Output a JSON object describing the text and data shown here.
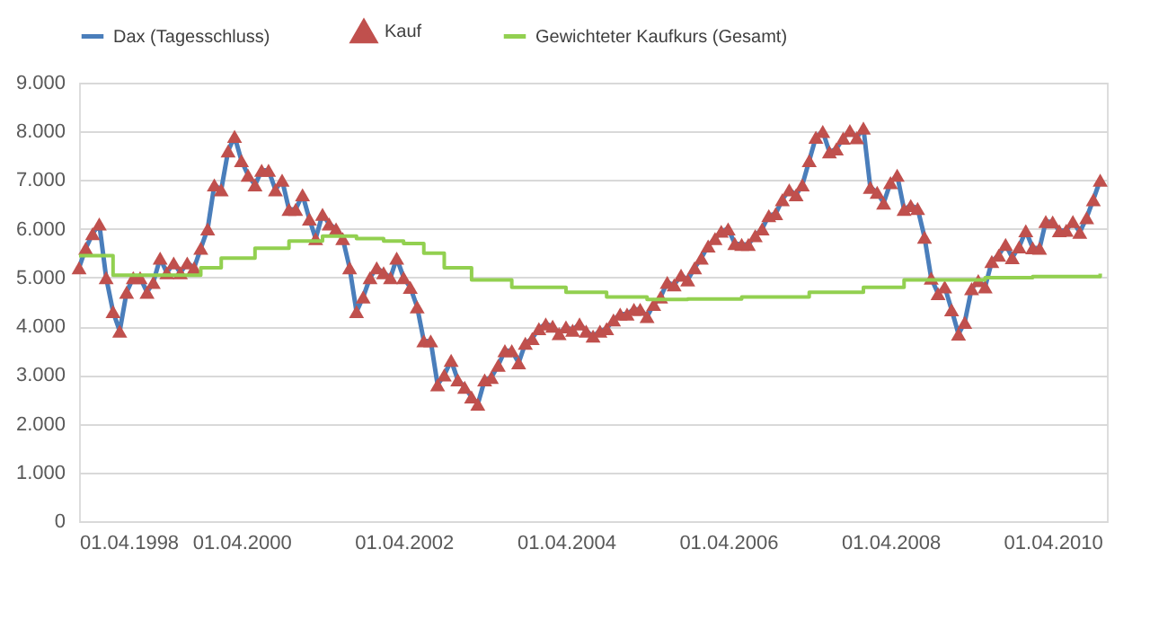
{
  "chart_data": {
    "type": "line",
    "legend": "top",
    "grid": "y",
    "xlim": [
      "1998-04-01",
      "2010-12-01"
    ],
    "xticks": [
      {
        "value": "1998-04-01",
        "label": "01.04.1998"
      },
      {
        "value": "2000-04-01",
        "label": "01.04.2000"
      },
      {
        "value": "2002-04-01",
        "label": "01.04.2002"
      },
      {
        "value": "2004-04-01",
        "label": "01.04.2004"
      },
      {
        "value": "2006-04-01",
        "label": "01.04.2006"
      },
      {
        "value": "2008-04-01",
        "label": "01.04.2008"
      },
      {
        "value": "2010-04-01",
        "label": "01.04.2010"
      }
    ],
    "ylim": [
      0,
      9000
    ],
    "yticks": [
      0,
      {
        "value": 1000,
        "label": "1.000"
      },
      {
        "value": 2000,
        "label": "2.000"
      },
      {
        "value": 3000,
        "label": "3.000"
      },
      {
        "value": 4000,
        "label": "4.000"
      },
      {
        "value": 5000,
        "label": "5.000"
      },
      {
        "value": 6000,
        "label": "6.000"
      },
      {
        "value": 7000,
        "label": "7.000"
      },
      {
        "value": 8000,
        "label": "8.000"
      },
      {
        "value": 9000,
        "label": "9.000"
      }
    ],
    "x": [
      "1998-04",
      "1998-05",
      "1998-06",
      "1998-07",
      "1998-08",
      "1998-09",
      "1998-10",
      "1998-11",
      "1998-12",
      "1999-01",
      "1999-02",
      "1999-03",
      "1999-04",
      "1999-05",
      "1999-06",
      "1999-07",
      "1999-08",
      "1999-09",
      "1999-10",
      "1999-11",
      "1999-12",
      "2000-01",
      "2000-02",
      "2000-03",
      "2000-04",
      "2000-05",
      "2000-06",
      "2000-07",
      "2000-08",
      "2000-09",
      "2000-10",
      "2000-11",
      "2000-12",
      "2001-01",
      "2001-02",
      "2001-03",
      "2001-04",
      "2001-05",
      "2001-06",
      "2001-07",
      "2001-08",
      "2001-09",
      "2001-10",
      "2001-11",
      "2001-12",
      "2002-01",
      "2002-02",
      "2002-03",
      "2002-04",
      "2002-05",
      "2002-06",
      "2002-07",
      "2002-08",
      "2002-09",
      "2002-10",
      "2002-11",
      "2002-12",
      "2003-01",
      "2003-02",
      "2003-03",
      "2003-04",
      "2003-05",
      "2003-06",
      "2003-07",
      "2003-08",
      "2003-09",
      "2003-10",
      "2003-11",
      "2003-12",
      "2004-01",
      "2004-02",
      "2004-03",
      "2004-04",
      "2004-05",
      "2004-06",
      "2004-07",
      "2004-08",
      "2004-09",
      "2004-10",
      "2004-11",
      "2004-12",
      "2005-01",
      "2005-02",
      "2005-03",
      "2005-04",
      "2005-05",
      "2005-06",
      "2005-07",
      "2005-08",
      "2005-09",
      "2005-10",
      "2005-11",
      "2005-12",
      "2006-01",
      "2006-02",
      "2006-03",
      "2006-04",
      "2006-05",
      "2006-06",
      "2006-07",
      "2006-08",
      "2006-09",
      "2006-10",
      "2006-11",
      "2006-12",
      "2007-01",
      "2007-02",
      "2007-03",
      "2007-04",
      "2007-05",
      "2007-06",
      "2007-07",
      "2007-08",
      "2007-09",
      "2007-10",
      "2007-11",
      "2007-12",
      "2008-01",
      "2008-02",
      "2008-03",
      "2008-04",
      "2008-05",
      "2008-06",
      "2008-07",
      "2008-08",
      "2008-09",
      "2008-10",
      "2008-11",
      "2008-12",
      "2009-01",
      "2009-02",
      "2009-03",
      "2009-04",
      "2009-05",
      "2009-06",
      "2009-07",
      "2009-08",
      "2009-09",
      "2009-10",
      "2009-11",
      "2009-12",
      "2010-01",
      "2010-02",
      "2010-03",
      "2010-04",
      "2010-05",
      "2010-06",
      "2010-07",
      "2010-08",
      "2010-09",
      "2010-10",
      "2010-11"
    ],
    "series": [
      {
        "name": "Dax (Tagesschluss)",
        "color": "#4a7ebb",
        "values": [
          5200,
          5600,
          5900,
          6100,
          5000,
          4300,
          3900,
          4700,
          5000,
          5000,
          4700,
          4900,
          5400,
          5100,
          5300,
          5100,
          5300,
          5200,
          5600,
          6000,
          6900,
          6800,
          7600,
          7900,
          7400,
          7100,
          6900,
          7200,
          7200,
          6800,
          7000,
          6400,
          6400,
          6700,
          6200,
          5800,
          6300,
          6100,
          6000,
          5800,
          5200,
          4300,
          4600,
          5000,
          5200,
          5100,
          5000,
          5400,
          5000,
          4800,
          4400,
          3700,
          3700,
          2800,
          3000,
          3300,
          2900,
          2750,
          2550,
          2400,
          2900,
          2950,
          3200,
          3500,
          3500,
          3250,
          3650,
          3750,
          3950,
          4050,
          4000,
          3850,
          3990,
          3920,
          4050,
          3900,
          3800,
          3900,
          3950,
          4130,
          4250,
          4250,
          4350,
          4350,
          4200,
          4450,
          4600,
          4900,
          4850,
          5050,
          4950,
          5200,
          5400,
          5650,
          5800,
          5950,
          6000,
          5700,
          5680,
          5680,
          5860,
          6000,
          6270,
          6310,
          6600,
          6800,
          6700,
          6900,
          7400,
          7880,
          8000,
          7580,
          7640,
          7860,
          8020,
          7870,
          8070,
          6850,
          6750,
          6530,
          6950,
          7100,
          6400,
          6480,
          6420,
          5830,
          4990,
          4670,
          4810,
          4340,
          3840,
          4080,
          4770,
          4940,
          4810,
          5330,
          5460,
          5680,
          5410,
          5630,
          5960,
          5610,
          5600,
          6150,
          6140,
          5960,
          5970,
          6150,
          5930,
          6230,
          6600,
          7000
        ]
      },
      {
        "name": "Kauf",
        "color": "#c0504d",
        "type": "scatter",
        "marker": "triangle",
        "values": [
          5200,
          5600,
          5900,
          6100,
          5000,
          4300,
          3900,
          4700,
          5000,
          5000,
          4700,
          4900,
          5400,
          5100,
          5300,
          5100,
          5300,
          5200,
          5600,
          6000,
          6900,
          6800,
          7600,
          7900,
          7400,
          7100,
          6900,
          7200,
          7200,
          6800,
          7000,
          6400,
          6400,
          6700,
          6200,
          5800,
          6300,
          6100,
          6000,
          5800,
          5200,
          4300,
          4600,
          5000,
          5200,
          5100,
          5000,
          5400,
          5000,
          4800,
          4400,
          3700,
          3700,
          2800,
          3000,
          3300,
          2900,
          2750,
          2550,
          2400,
          2900,
          2950,
          3200,
          3500,
          3500,
          3250,
          3650,
          3750,
          3950,
          4050,
          4000,
          3850,
          3990,
          3920,
          4050,
          3900,
          3800,
          3900,
          3950,
          4130,
          4250,
          4250,
          4350,
          4350,
          4200,
          4450,
          4600,
          4900,
          4850,
          5050,
          4950,
          5200,
          5400,
          5650,
          5800,
          5950,
          6000,
          5700,
          5680,
          5680,
          5860,
          6000,
          6270,
          6310,
          6600,
          6800,
          6700,
          6900,
          7400,
          7880,
          8000,
          7580,
          7640,
          7860,
          8020,
          7870,
          8070,
          6850,
          6750,
          6530,
          6950,
          7100,
          6400,
          6480,
          6420,
          5830,
          4990,
          4670,
          4810,
          4340,
          3840,
          4080,
          4770,
          4940,
          4810,
          5330,
          5460,
          5680,
          5410,
          5630,
          5960,
          5610,
          5600,
          6150,
          6140,
          5960,
          5970,
          6150,
          5930,
          6230,
          6600,
          7000
        ]
      },
      {
        "name": "Gewichteter Kaufkurs (Gesamt)",
        "color": "#92d050",
        "type": "step",
        "x": [
          "1998-04",
          "1998-09",
          "1999-07",
          "1999-10",
          "2000-01",
          "2000-06",
          "2000-11",
          "2001-04",
          "2001-09",
          "2002-01",
          "2002-04",
          "2002-07",
          "2002-10",
          "2003-02",
          "2003-08",
          "2004-04",
          "2004-10",
          "2005-04",
          "2005-10",
          "2006-06",
          "2007-04",
          "2007-12",
          "2008-06",
          "2009-06",
          "2010-01",
          "2010-11"
        ],
        "values": [
          5450,
          5050,
          5050,
          5200,
          5400,
          5600,
          5750,
          5850,
          5800,
          5750,
          5700,
          5500,
          5200,
          4950,
          4800,
          4700,
          4600,
          4550,
          4560,
          4600,
          4700,
          4800,
          4950,
          5000,
          5020,
          5080
        ]
      }
    ]
  }
}
